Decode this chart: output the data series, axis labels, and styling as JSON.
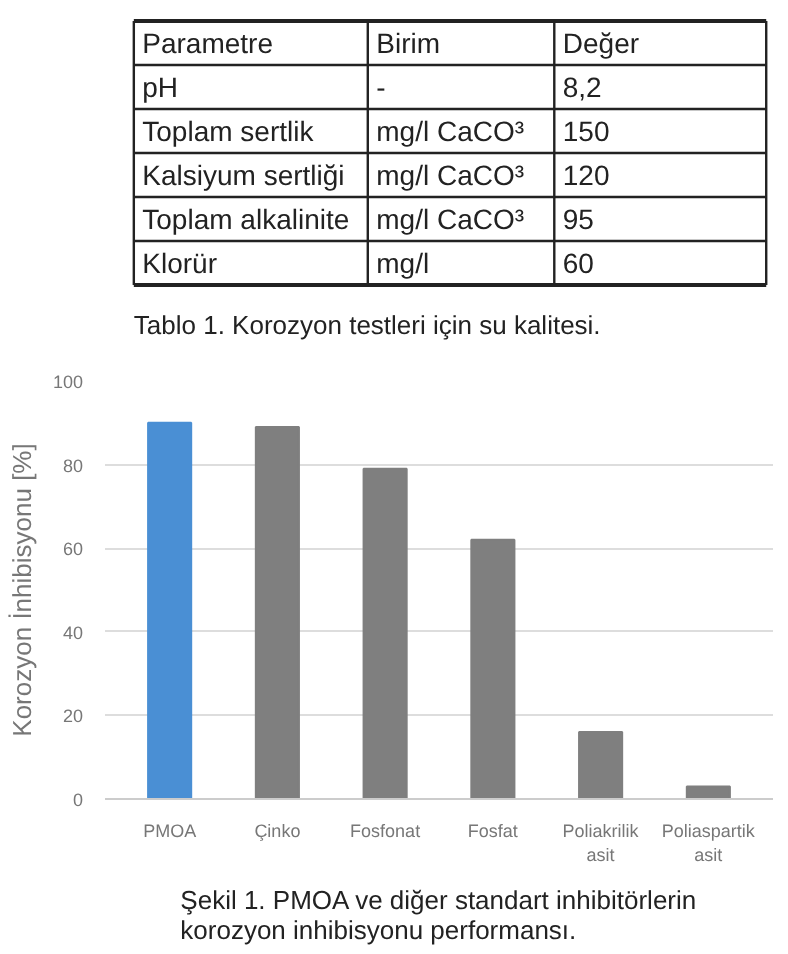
{
  "chart_data": [
    {
      "type": "other",
      "title": "Tablo 1. Korozyon testleri için su kalitesi.",
      "annotations": [
        "Parametre",
        "Birim",
        "Değer",
        "pH",
        "-",
        "8,2",
        "Toplam sertlik",
        "mg/l CaCO³",
        "150",
        "Kalsiyum sertliği",
        "mg/l CaCO³",
        "120",
        "Toplam alkalinite",
        "mg/l CaCO³",
        "95",
        "Klorür",
        "mg/l",
        "60"
      ]
    },
    {
      "type": "bar",
      "title": "Şekil 1. PMOA ve diğer standart inhibitörlerin korozyon inhibisyonu performansı.",
      "ylabel": "Korozyon İnhibisyonu [%]",
      "categories": [
        "PMOA",
        "Çinko",
        "Fosfonat",
        "Fosfat",
        "Poliakrilik asit",
        "Poliaspartik asit"
      ],
      "values": [
        90,
        89,
        79,
        62,
        16,
        3
      ],
      "colors": [
        "#4a8fd4",
        "#7f7f7f",
        "#7f7f7f",
        "#7f7f7f",
        "#7f7f7f",
        "#7f7f7f"
      ],
      "ylim": [
        0,
        100
      ],
      "yticks": [
        0,
        20,
        40,
        60,
        80,
        100
      ],
      "grid": "y"
    }
  ]
}
